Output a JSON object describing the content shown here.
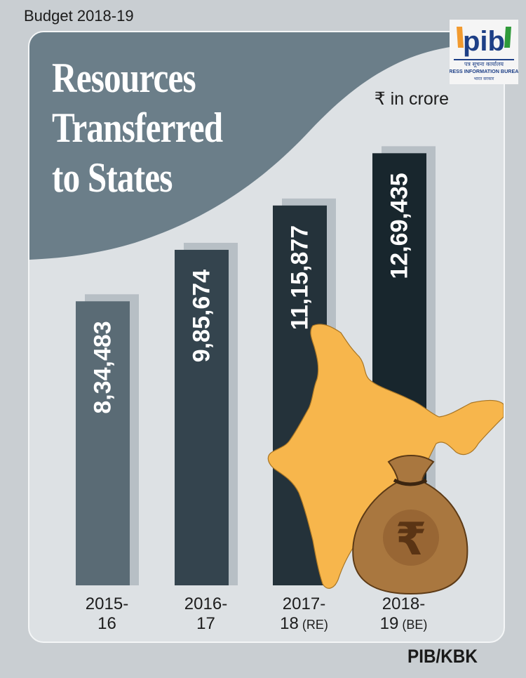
{
  "header": {
    "budget_label": "Budget 2018-19"
  },
  "unit_label": "₹ in crore",
  "footer_credit": "PIB/KBK",
  "logo": {
    "main_text": "pib",
    "hindi_text": "पत्र सूचना कार्यालय",
    "english_text": "PRESS INFORMATION BUREAU",
    "sub_text": "भारत सरकार"
  },
  "colors": {
    "title_blob": "#6b7e89",
    "bar_1": "#5a6b75",
    "bar_2": "#34444e",
    "bar_3": "#24323a",
    "bar_4": "#18262d",
    "bar_shadow": "#b7bfc5",
    "map": "#f7b64c",
    "map_outline": "#a87524",
    "bag": "#a9773f"
  },
  "chart_data": {
    "type": "bar",
    "title": "Resources Transferred to States",
    "categories": [
      {
        "line1": "2015-",
        "line2": "16",
        "suffix": ""
      },
      {
        "line1": "2016-",
        "line2": "17",
        "suffix": ""
      },
      {
        "line1": "2017-",
        "line2": "18",
        "suffix": " (RE)"
      },
      {
        "line1": "2018-",
        "line2": "19",
        "suffix": " (BE)"
      }
    ],
    "values": [
      834483,
      985674,
      1115877,
      1269435
    ],
    "value_labels": [
      "8,34,483",
      "9,85,674",
      "11,15,877",
      "12,69,435"
    ],
    "unit": "₹ in crore"
  }
}
